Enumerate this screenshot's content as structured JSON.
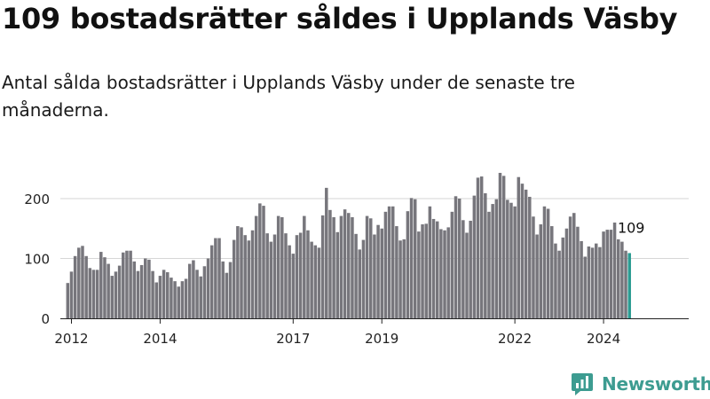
{
  "header": {
    "title": "109 bostadsrätter såldes i Upplands Väsby",
    "subtitle": "Antal sålda bostadsrätter i Upplands Väsby under de senaste tre månaderna."
  },
  "brand": {
    "name": "Newsworthy",
    "icon": "newsworthy-logo-icon"
  },
  "colors": {
    "bar": "#77767c",
    "highlight": "#2b9b91",
    "axis": "#222222",
    "grid": "#d6d6d6",
    "brand": "#3d9c91"
  },
  "chart_data": {
    "type": "bar",
    "title": "109 bostadsrätter såldes i Upplands Väsby",
    "subtitle": "Antal sålda bostadsrätter i Upplands Väsby under de senaste tre månaderna.",
    "xlabel": "",
    "ylabel": "",
    "ylim": [
      0,
      280
    ],
    "yticks": [
      0,
      100,
      200
    ],
    "xlim": [
      2011.75,
      2025.92
    ],
    "xticks": [
      "2012",
      "2014",
      "2017",
      "2019",
      "2022",
      "2024"
    ],
    "grid": true,
    "legend": "none",
    "period": "rolling three-month totals, monthly steps",
    "start": {
      "year": 2011,
      "month": 12
    },
    "values": [
      59,
      78,
      104,
      118,
      121,
      104,
      84,
      81,
      81,
      111,
      102,
      91,
      71,
      78,
      88,
      110,
      113,
      113,
      95,
      79,
      89,
      100,
      98,
      79,
      60,
      71,
      81,
      77,
      68,
      62,
      53,
      62,
      66,
      91,
      97,
      81,
      70,
      87,
      100,
      122,
      134,
      134,
      95,
      76,
      94,
      131,
      154,
      152,
      139,
      130,
      147,
      171,
      192,
      188,
      142,
      128,
      140,
      171,
      169,
      142,
      122,
      108,
      139,
      143,
      171,
      147,
      128,
      122,
      118,
      172,
      218,
      181,
      169,
      144,
      171,
      182,
      176,
      169,
      141,
      115,
      131,
      171,
      167,
      140,
      156,
      150,
      178,
      187,
      187,
      154,
      130,
      132,
      179,
      201,
      199,
      145,
      157,
      158,
      187,
      166,
      162,
      149,
      147,
      152,
      178,
      204,
      200,
      164,
      143,
      163,
      205,
      235,
      237,
      209,
      178,
      191,
      199,
      243,
      238,
      198,
      193,
      187,
      236,
      225,
      215,
      203,
      170,
      140,
      157,
      187,
      183,
      154,
      125,
      113,
      135,
      150,
      170,
      176,
      153,
      129,
      103,
      120,
      118,
      125,
      119,
      145,
      148,
      148,
      160,
      132,
      128,
      113,
      109
    ],
    "last_value": 109,
    "last_value_label": "109"
  }
}
